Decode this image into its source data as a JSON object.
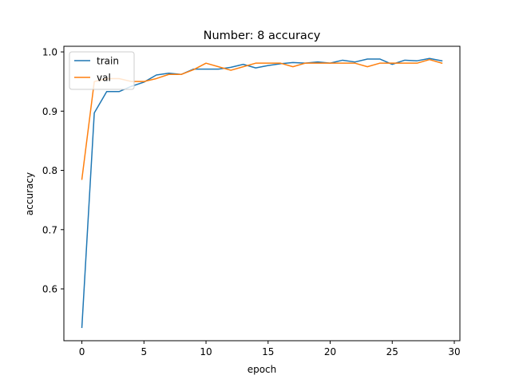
{
  "chart_data": {
    "type": "line",
    "title": "Number: 8 accuracy",
    "xlabel": "epoch",
    "ylabel": "accuracy",
    "xlim": [
      -1.45,
      30.45
    ],
    "ylim": [
      0.5125,
      1.0095
    ],
    "xticks": [
      0,
      5,
      10,
      15,
      20,
      25,
      30
    ],
    "yticks": [
      0.6,
      0.7,
      0.8,
      0.9,
      1.0
    ],
    "ytick_labels": [
      "0.6",
      "0.7",
      "0.8",
      "0.9",
      "1.0"
    ],
    "grid": false,
    "legend": {
      "position": "top-left"
    },
    "x": [
      0,
      1,
      2,
      3,
      4,
      5,
      6,
      7,
      8,
      9,
      10,
      11,
      12,
      13,
      14,
      15,
      16,
      17,
      18,
      19,
      20,
      21,
      22,
      23,
      24,
      25,
      26,
      27,
      28,
      29
    ],
    "series": [
      {
        "name": "train",
        "color": "#1f77b4",
        "values": [
          0.535,
          0.897,
          0.933,
          0.933,
          0.942,
          0.949,
          0.961,
          0.964,
          0.962,
          0.971,
          0.971,
          0.971,
          0.974,
          0.979,
          0.973,
          0.977,
          0.98,
          0.982,
          0.981,
          0.983,
          0.981,
          0.986,
          0.983,
          0.988,
          0.988,
          0.979,
          0.986,
          0.985,
          0.989,
          0.985
        ]
      },
      {
        "name": "val",
        "color": "#ff7f0e",
        "values": [
          0.785,
          0.95,
          0.955,
          0.955,
          0.95,
          0.95,
          0.955,
          0.962,
          0.962,
          0.97,
          0.981,
          0.975,
          0.969,
          0.975,
          0.981,
          0.981,
          0.981,
          0.975,
          0.981,
          0.981,
          0.981,
          0.981,
          0.981,
          0.975,
          0.981,
          0.981,
          0.981,
          0.981,
          0.987,
          0.981
        ]
      }
    ]
  }
}
